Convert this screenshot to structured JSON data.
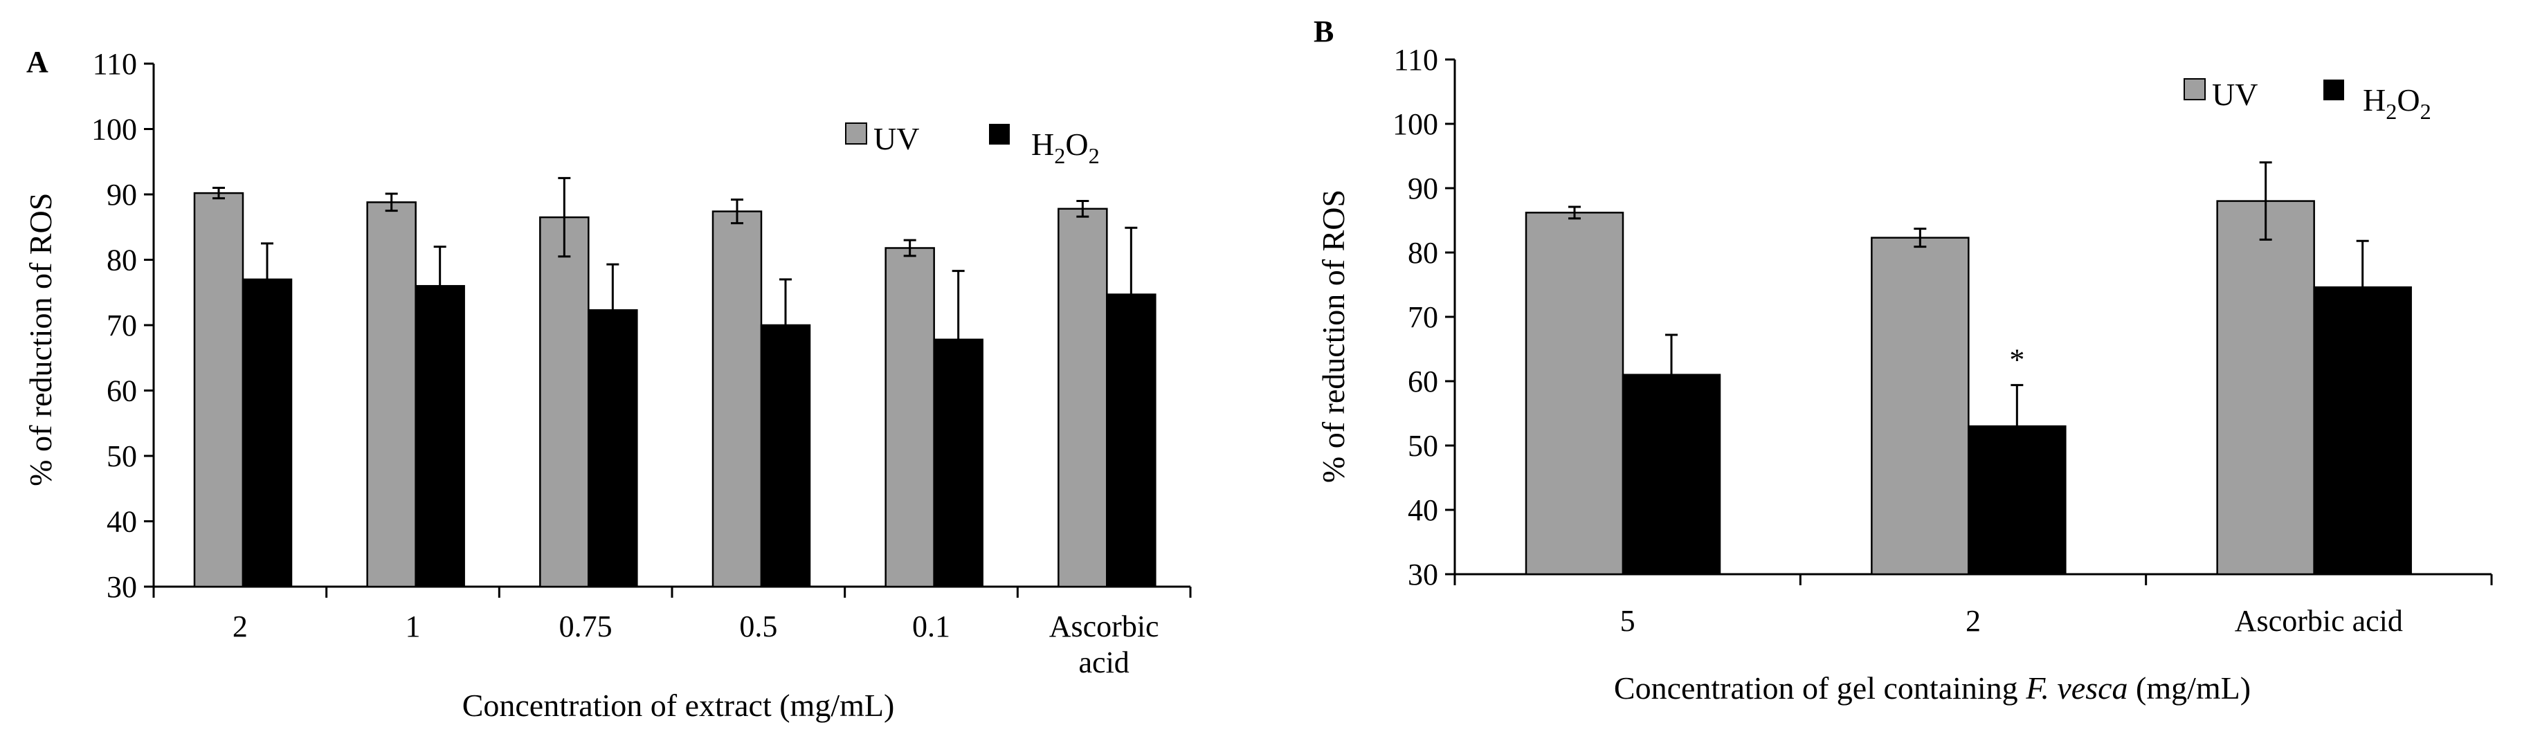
{
  "chart_data": [
    {
      "panel": "A",
      "type": "bar",
      "title": "",
      "xlabel": "Concentration of extract (mg/mL)",
      "ylabel": "% of reduction of ROS",
      "ylim": [
        30,
        110
      ],
      "yticks": [
        30,
        40,
        50,
        60,
        70,
        80,
        90,
        100,
        110
      ],
      "categories": [
        "2",
        "1",
        "0.75",
        "0.5",
        "0.1",
        "Ascorbic acid"
      ],
      "category_lines": [
        [
          "2"
        ],
        [
          "1"
        ],
        [
          "0.75"
        ],
        [
          "0.5"
        ],
        [
          "0.1"
        ],
        [
          "Ascorbic",
          "acid"
        ]
      ],
      "legend": {
        "position": "top-right",
        "uv": "UV",
        "h2o2_base": "H",
        "h2o2_sub1": "2",
        "h2o2_mid": "O",
        "h2o2_sub2": "2"
      },
      "series": [
        {
          "name": "UV",
          "color": "#a0a0a0",
          "values": [
            90.2,
            88.8,
            86.5,
            87.4,
            81.8,
            87.8
          ],
          "errors": [
            0.8,
            1.3,
            6.0,
            1.8,
            1.2,
            1.2
          ]
        },
        {
          "name": "H2O2",
          "color": "#000000",
          "values": [
            77.0,
            76.0,
            72.3,
            70.0,
            67.8,
            74.7
          ],
          "errors": [
            5.5,
            6.0,
            7.0,
            7.0,
            10.5,
            10.2
          ]
        }
      ],
      "annotations": []
    },
    {
      "panel": "B",
      "type": "bar",
      "title": "",
      "xlabel_pre": "Concentration of gel containing ",
      "xlabel_italic": "F. vesca",
      "xlabel_post": " (mg/mL)",
      "ylabel": "% of reduction of ROS",
      "ylim": [
        30,
        110
      ],
      "yticks": [
        30,
        40,
        50,
        60,
        70,
        80,
        90,
        100,
        110
      ],
      "categories": [
        "5",
        "2",
        "Ascorbic acid"
      ],
      "category_lines": [
        [
          "5"
        ],
        [
          "2"
        ],
        [
          "Ascorbic acid"
        ]
      ],
      "legend": {
        "position": "top-right",
        "uv": "UV",
        "h2o2_base": "H",
        "h2o2_sub1": "2",
        "h2o2_mid": "O",
        "h2o2_sub2": "2"
      },
      "series": [
        {
          "name": "UV",
          "color": "#a0a0a0",
          "values": [
            86.2,
            82.3,
            88.0
          ],
          "errors": [
            0.9,
            1.4,
            6.0
          ]
        },
        {
          "name": "H2O2",
          "color": "#000000",
          "values": [
            61.0,
            53.0,
            74.6
          ],
          "errors": [
            6.2,
            6.4,
            7.2
          ]
        }
      ],
      "annotations": [
        {
          "text": "*",
          "series": "H2O2",
          "category": "2"
        }
      ]
    }
  ]
}
